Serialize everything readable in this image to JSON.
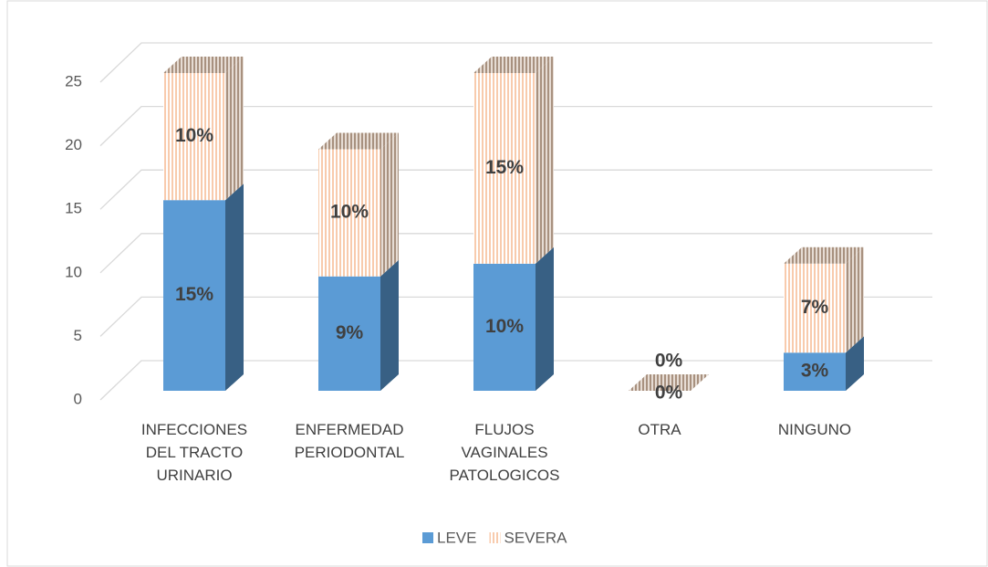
{
  "chart_data": {
    "type": "bar3d_stacked",
    "categories": [
      "INFECCIONES DEL TRACTO URINARIO",
      "ENFERMEDAD PERIODONTAL",
      "FLUJOS VAGINALES PATOLOGICOS",
      "OTRA",
      "NINGUNO"
    ],
    "series": [
      {
        "name": "LEVE",
        "color": "#5b9bd5",
        "values": [
          15,
          9,
          10,
          0,
          3
        ],
        "value_labels": [
          "15%",
          "9%",
          "10%",
          "0%",
          "3%"
        ]
      },
      {
        "name": "SEVERA",
        "color": "#f8cbad",
        "values": [
          10,
          10,
          15,
          0,
          7
        ],
        "value_labels": [
          "10%",
          "10%",
          "15%",
          "0%",
          "7%"
        ]
      }
    ],
    "ylim": [
      0,
      25
    ],
    "yticks": [
      0,
      5,
      10,
      15,
      20,
      25
    ],
    "grid": true,
    "legend": "bottom"
  }
}
